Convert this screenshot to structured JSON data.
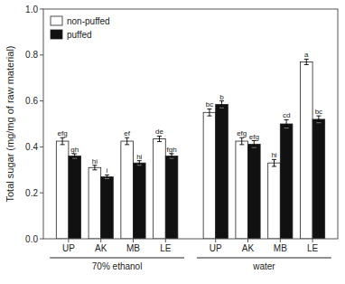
{
  "chart_data": {
    "type": "bar",
    "categories": [
      "UP",
      "AK",
      "MB",
      "LE",
      "UP",
      "AK",
      "MB",
      "LE"
    ],
    "category_groups": [
      "70% ethanol",
      "70% ethanol",
      "70% ethanol",
      "70% ethanol",
      "water",
      "water",
      "water",
      "water"
    ],
    "series": [
      {
        "name": "non-puffed",
        "color": "#ffffff",
        "values": [
          0.425,
          0.31,
          0.425,
          0.435,
          0.55,
          0.425,
          0.33,
          0.77
        ],
        "errors": [
          0.015,
          0.01,
          0.015,
          0.012,
          0.015,
          0.015,
          0.015,
          0.012
        ],
        "annotations": [
          "efg",
          "hi",
          "ef",
          "de",
          "bc",
          "efg",
          "hi",
          "a"
        ]
      },
      {
        "name": "puffed",
        "color": "#111111",
        "values": [
          0.36,
          0.27,
          0.33,
          0.36,
          0.585,
          0.412,
          0.5,
          0.52
        ],
        "errors": [
          0.01,
          0.008,
          0.01,
          0.01,
          0.015,
          0.015,
          0.018,
          0.015
        ],
        "annotations": [
          "gh",
          "i",
          "hi",
          "fgh",
          "b",
          "efg",
          "cd",
          "bc"
        ]
      }
    ],
    "y_label": "Total sugar (mg/mg of raw material)",
    "ylim": [
      0.0,
      1.0
    ],
    "yticks": [
      {
        "value": 0.0,
        "label": "0.0"
      },
      0.2,
      0.4,
      0.6,
      0.8,
      {
        "value": 1.0,
        "label": "1.0"
      }
    ],
    "grid": false,
    "legend": "upper left"
  }
}
